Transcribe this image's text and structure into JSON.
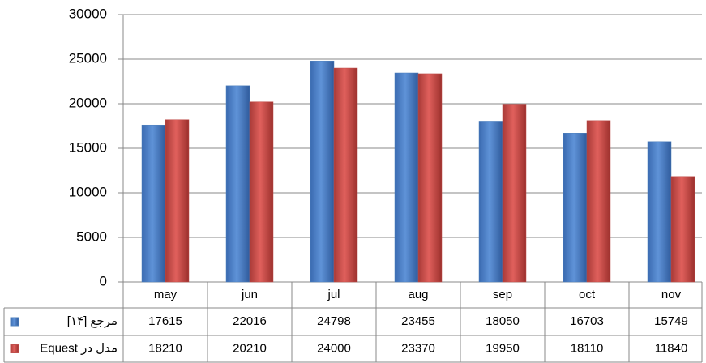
{
  "chart_data": {
    "type": "bar",
    "categories": [
      "may",
      "jun",
      "jul",
      "aug",
      "sep",
      "oct",
      "nov"
    ],
    "series": [
      {
        "name": "مرجع [۱۴]",
        "color": "#4f81bd",
        "values": [
          17615,
          22016,
          24798,
          23455,
          18050,
          16703,
          15749
        ]
      },
      {
        "name": "مدل در Equest",
        "color": "#c0504d",
        "values": [
          18210,
          20210,
          24000,
          23370,
          19950,
          18110,
          11840
        ]
      }
    ],
    "ylim": [
      0,
      30000
    ],
    "yticks": [
      0,
      5000,
      10000,
      15000,
      20000,
      25000,
      30000
    ],
    "grid": true
  }
}
